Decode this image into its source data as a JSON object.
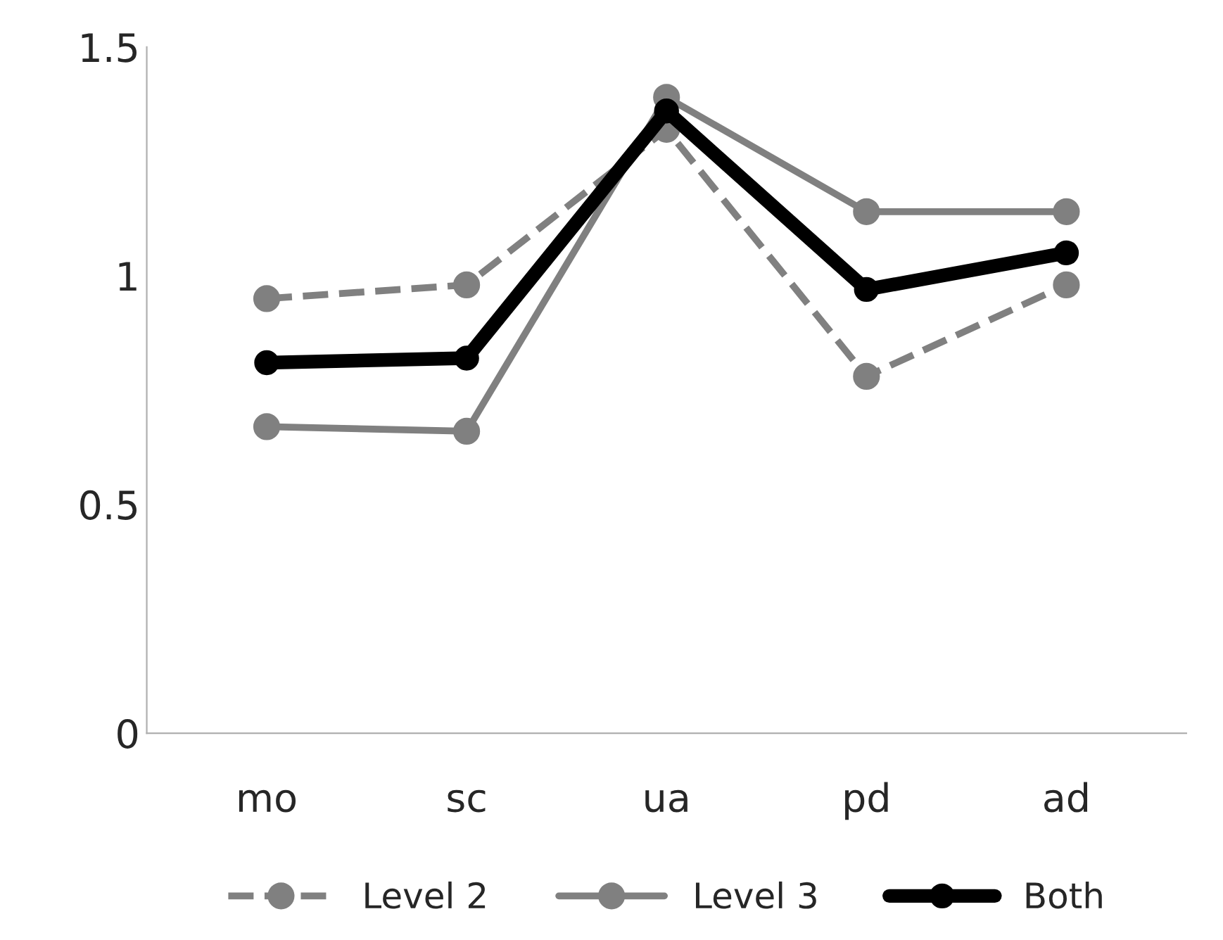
{
  "chart_data": {
    "type": "line",
    "categories": [
      "mo",
      "sc",
      "ua",
      "pd",
      "ad"
    ],
    "series": [
      {
        "name": "Level 2",
        "color": "#808080",
        "line_style": "dashed",
        "values": [
          0.95,
          0.98,
          1.32,
          0.78,
          0.98
        ]
      },
      {
        "name": "Level 3",
        "color": "#808080",
        "line_style": "solid",
        "values": [
          0.67,
          0.66,
          1.39,
          1.14,
          1.14
        ]
      },
      {
        "name": "Both",
        "color": "#000000",
        "line_style": "solid",
        "values": [
          0.81,
          0.82,
          1.36,
          0.97,
          1.05
        ]
      }
    ],
    "ylim": [
      0,
      1.5
    ],
    "yticks": [
      0,
      0.5,
      1,
      1.5
    ],
    "marker": "circle",
    "legend": "bottom",
    "grid": false
  }
}
